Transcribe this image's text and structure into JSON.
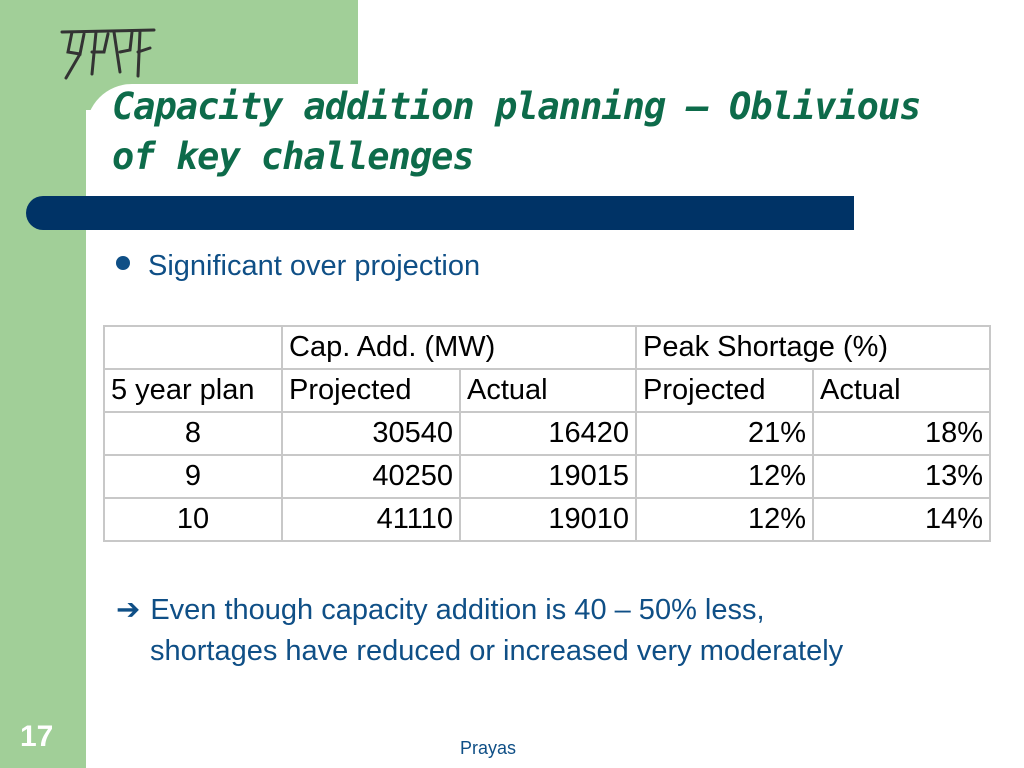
{
  "logo_text": "प्रयास",
  "title_line1": "Capacity addition planning – Oblivious",
  "title_line2": "of key challenges",
  "bullet": "Significant over projection",
  "table": {
    "group_headers": [
      "",
      "Cap. Add. (MW)",
      "Peak Shortage (%)"
    ],
    "sub_headers": [
      "5 year plan",
      "Projected",
      "Actual",
      "Projected",
      "Actual"
    ],
    "rows": [
      [
        "8",
        "30540",
        "16420",
        "21%",
        "18%"
      ],
      [
        "9",
        "40250",
        "19015",
        "12%",
        "13%"
      ],
      [
        "10",
        "41110",
        "19010",
        "12%",
        "14%"
      ]
    ]
  },
  "conclusion_arrow": "➔",
  "conclusion_line1": "Even though capacity addition is 40 – 50% less,",
  "conclusion_line2": "shortages have reduced or increased very moderately",
  "slide_number": "17",
  "footer": "Prayas",
  "colors": {
    "band": "#a1cf98",
    "title": "#0d6b4a",
    "rule": "#003366",
    "text": "#0f4f86"
  }
}
